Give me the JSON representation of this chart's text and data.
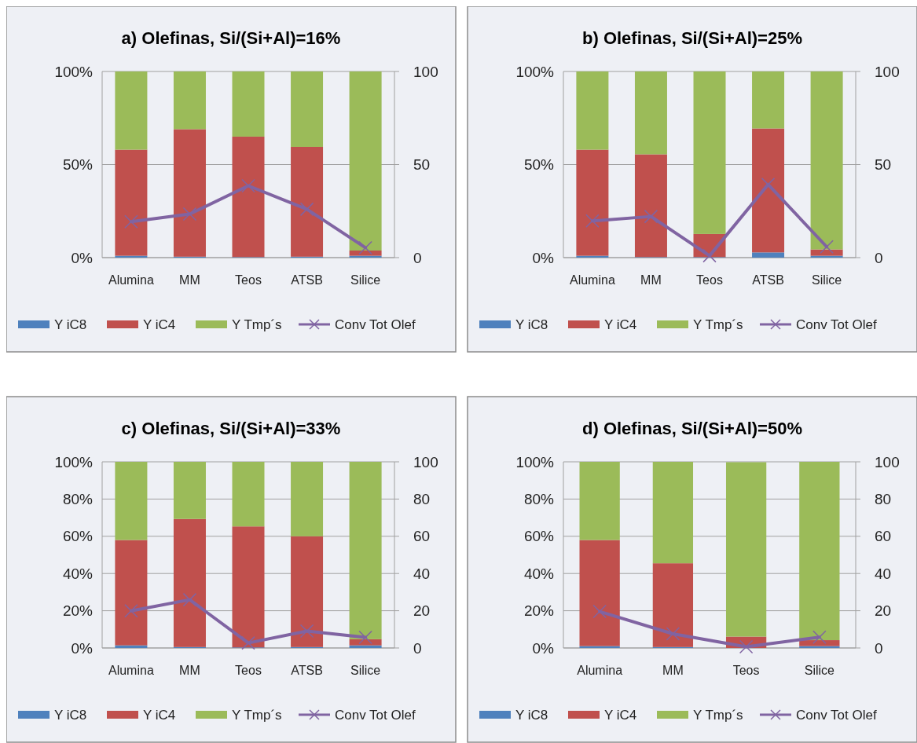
{
  "chart_data": [
    {
      "type": "bar",
      "stacked": true,
      "title": "a) Olefinas, Si/(Si+Al)=16%",
      "categories": [
        "Alumina",
        "MM",
        "Teos",
        "ATSB",
        "Silice"
      ],
      "ylim": [
        0,
        100
      ],
      "yticks": [
        {
          "value": 0,
          "label": "0%"
        },
        {
          "value": 50,
          "label": "50%"
        },
        {
          "value": 100,
          "label": "100%"
        }
      ],
      "y2lim": [
        0,
        100
      ],
      "y2ticks": [
        0,
        50,
        100
      ],
      "grid": "y",
      "legend": "bottom",
      "series": [
        {
          "name": "Y iC8",
          "color": "#4f81bd",
          "values": [
            1,
            0.5,
            0.3,
            0.5,
            1
          ]
        },
        {
          "name": "Y iC4",
          "color": "#c0504d",
          "values": [
            57,
            68.5,
            64.7,
            59,
            2.8
          ]
        },
        {
          "name": "Y Tmp´s",
          "color": "#9bbb59",
          "values": [
            42,
            31,
            35,
            40.5,
            96.2
          ]
        },
        {
          "name": "Conv Tot Olef",
          "type": "line",
          "axis": "y2",
          "marker": "cross",
          "color": "#8064a2",
          "values": [
            19.3,
            23.4,
            38.6,
            26,
            5.3
          ]
        }
      ]
    },
    {
      "type": "bar",
      "stacked": true,
      "title": "b) Olefinas, Si/(Si+Al)=25%",
      "categories": [
        "Alumina",
        "MM",
        "Teos",
        "ATSB",
        "Silice"
      ],
      "ylim": [
        0,
        100
      ],
      "yticks": [
        {
          "value": 0,
          "label": "0%"
        },
        {
          "value": 50,
          "label": "50%"
        },
        {
          "value": 100,
          "label": "100%"
        }
      ],
      "y2lim": [
        0,
        100
      ],
      "y2ticks": [
        0,
        50,
        100
      ],
      "grid": "y",
      "legend": "bottom",
      "series": [
        {
          "name": "Y iC8",
          "color": "#4f81bd",
          "values": [
            1,
            0.3,
            0.3,
            2.8,
            1
          ]
        },
        {
          "name": "Y iC4",
          "color": "#c0504d",
          "values": [
            57,
            55.2,
            12.4,
            66.6,
            3.4
          ]
        },
        {
          "name": "Y Tmp´s",
          "color": "#9bbb59",
          "values": [
            42,
            44.5,
            87.3,
            30.6,
            95.6
          ]
        },
        {
          "name": "Conv Tot Olef",
          "type": "line",
          "axis": "y2",
          "marker": "cross",
          "color": "#8064a2",
          "values": [
            19.7,
            22.1,
            1,
            39.3,
            5.8
          ]
        }
      ]
    },
    {
      "type": "bar",
      "stacked": true,
      "title": "c) Olefinas, Si/(Si+Al)=33%",
      "categories": [
        "Alumina",
        "MM",
        "Teos",
        "ATSB",
        "Silice"
      ],
      "ylim": [
        0,
        100
      ],
      "yticks": [
        {
          "value": 0,
          "label": "0%"
        },
        {
          "value": 20,
          "label": "20%"
        },
        {
          "value": 40,
          "label": "40%"
        },
        {
          "value": 60,
          "label": "60%"
        },
        {
          "value": 80,
          "label": "80%"
        },
        {
          "value": 100,
          "label": "100%"
        }
      ],
      "y2lim": [
        0,
        100
      ],
      "y2ticks": [
        0,
        20,
        40,
        60,
        80,
        100
      ],
      "grid": "y",
      "legend": "bottom",
      "series": [
        {
          "name": "Y iC8",
          "color": "#4f81bd",
          "values": [
            1.4,
            0.5,
            0.3,
            0.5,
            1.4
          ]
        },
        {
          "name": "Y iC4",
          "color": "#c0504d",
          "values": [
            56.6,
            68.8,
            65,
            59.5,
            3.3
          ]
        },
        {
          "name": "Y Tmp´s",
          "color": "#9bbb59",
          "values": [
            42,
            30.7,
            34.7,
            40,
            95.3
          ]
        },
        {
          "name": "Conv Tot Olef",
          "type": "line",
          "axis": "y2",
          "marker": "cross",
          "color": "#8064a2",
          "values": [
            19.9,
            25.9,
            2.7,
            9.1,
            5.7
          ]
        }
      ]
    },
    {
      "type": "bar",
      "stacked": true,
      "title": "d) Olefinas, Si/(Si+Al)=50%",
      "categories": [
        "Alumina",
        "MM",
        "Teos",
        "Silice"
      ],
      "ylim": [
        0,
        100
      ],
      "yticks": [
        {
          "value": 0,
          "label": "0%"
        },
        {
          "value": 20,
          "label": "20%"
        },
        {
          "value": 40,
          "label": "40%"
        },
        {
          "value": 60,
          "label": "60%"
        },
        {
          "value": 80,
          "label": "80%"
        },
        {
          "value": 100,
          "label": "100%"
        }
      ],
      "y2lim": [
        0,
        100
      ],
      "y2ticks": [
        0,
        20,
        40,
        60,
        80,
        100
      ],
      "grid": "y",
      "legend": "bottom",
      "series": [
        {
          "name": "Y iC8",
          "color": "#4f81bd",
          "values": [
            1,
            0.5,
            null,
            1
          ]
        },
        {
          "name": "Y iC4",
          "color": "#c0504d",
          "values": [
            57,
            45,
            6.1,
            3.2
          ]
        },
        {
          "name": "Y Tmp´s",
          "color": "#9bbb59",
          "values": [
            42,
            54.5,
            93.7,
            95.8
          ]
        },
        {
          "name": "Conv Tot Olef",
          "type": "line",
          "axis": "y2",
          "marker": "cross",
          "color": "#8064a2",
          "values": [
            19.6,
            7.6,
            0.6,
            5.8
          ]
        }
      ]
    }
  ]
}
